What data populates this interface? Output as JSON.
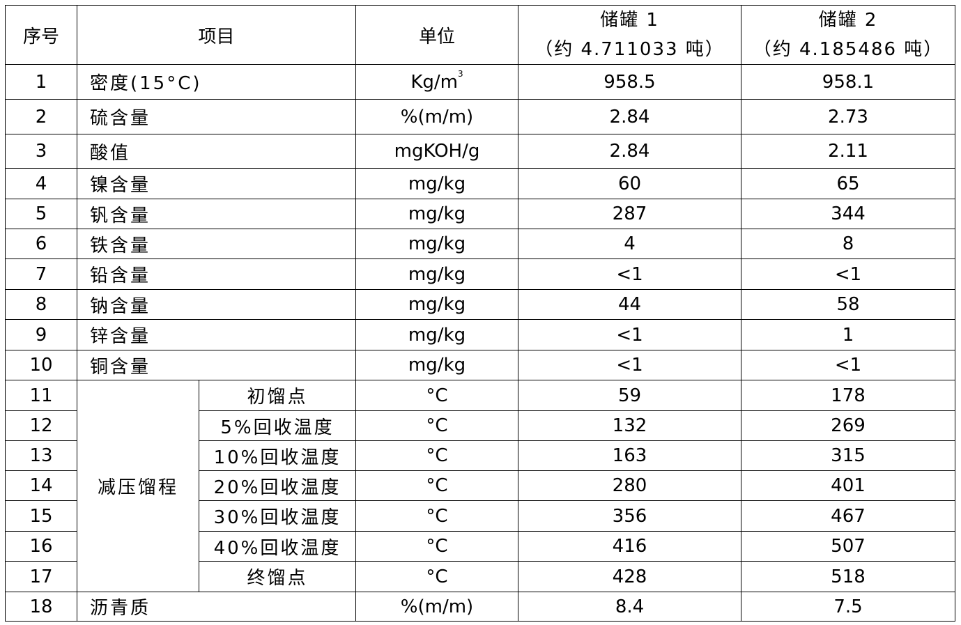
{
  "header": {
    "no": "序号",
    "item": "项目",
    "unit": "单位",
    "tank1_line1": "储罐 1",
    "tank1_line2": "（约 4.711033 吨）",
    "tank2_line1": "储罐 2",
    "tank2_line2": "（约 4.185486 吨）"
  },
  "distillation_group_label": "减压馏程",
  "rows": [
    {
      "no": "1",
      "item": "密度(15°C)",
      "unit": "Kg/m",
      "unit_sup": "3",
      "tank1": "958.5",
      "tank2": "958.1"
    },
    {
      "no": "2",
      "item": "硫含量",
      "unit": "%(m/m)",
      "tank1": "2.84",
      "tank2": "2.73"
    },
    {
      "no": "3",
      "item": "酸值",
      "unit": "mgKOH/g",
      "tank1": "2.84",
      "tank2": "2.11"
    },
    {
      "no": "4",
      "item": "镍含量",
      "unit": "mg/kg",
      "tank1": "60",
      "tank2": "65"
    },
    {
      "no": "5",
      "item": "钒含量",
      "unit": "mg/kg",
      "tank1": "287",
      "tank2": "344"
    },
    {
      "no": "6",
      "item": "铁含量",
      "unit": "mg/kg",
      "tank1": "4",
      "tank2": "8"
    },
    {
      "no": "7",
      "item": "铅含量",
      "unit": "mg/kg",
      "tank1": "<1",
      "tank2": "<1"
    },
    {
      "no": "8",
      "item": "钠含量",
      "unit": "mg/kg",
      "tank1": "44",
      "tank2": "58"
    },
    {
      "no": "9",
      "item": "锌含量",
      "unit": "mg/kg",
      "tank1": "<1",
      "tank2": "1"
    },
    {
      "no": "10",
      "item": "铜含量",
      "unit": "mg/kg",
      "tank1": "<1",
      "tank2": "<1"
    },
    {
      "no": "11",
      "sub": "初馏点",
      "unit": "°C",
      "tank1": "59",
      "tank2": "178"
    },
    {
      "no": "12",
      "sub": "5%回收温度",
      "unit": "°C",
      "tank1": "132",
      "tank2": "269"
    },
    {
      "no": "13",
      "sub": "10%回收温度",
      "unit": "°C",
      "tank1": "163",
      "tank2": "315"
    },
    {
      "no": "14",
      "sub": "20%回收温度",
      "unit": "°C",
      "tank1": "280",
      "tank2": "401"
    },
    {
      "no": "15",
      "sub": "30%回收温度",
      "unit": "°C",
      "tank1": "356",
      "tank2": "467"
    },
    {
      "no": "16",
      "sub": "40%回收温度",
      "unit": "°C",
      "tank1": "416",
      "tank2": "507"
    },
    {
      "no": "17",
      "sub": "终馏点",
      "unit": "°C",
      "tank1": "428",
      "tank2": "518"
    },
    {
      "no": "18",
      "item": "沥青质",
      "unit": "%(m/m)",
      "tank1": "8.4",
      "tank2": "7.5"
    }
  ]
}
